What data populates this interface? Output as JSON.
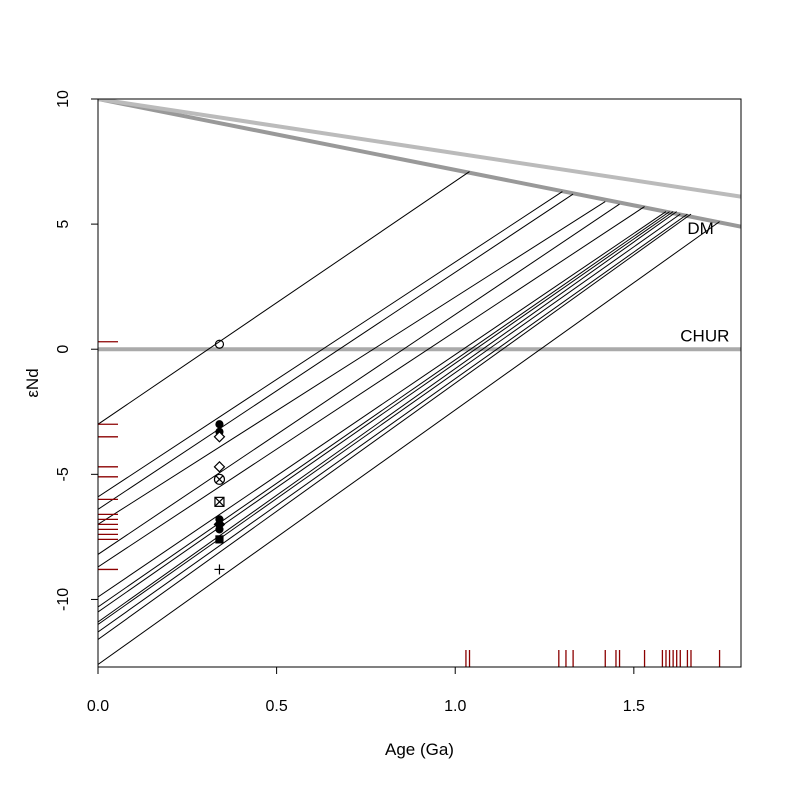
{
  "chart_data": {
    "type": "line",
    "xlabel": "Age (Ga)",
    "ylabel": "εNd",
    "xlim": [
      0,
      1.8
    ],
    "ylim": [
      -12.7,
      10
    ],
    "x_ticks": [
      "0.0",
      "0.5",
      "1.0",
      "1.5"
    ],
    "y_ticks": [
      "-10",
      "-5",
      "0",
      "5",
      "10"
    ],
    "reference_lines": [
      {
        "name": "DM",
        "x": [
          0,
          1.8
        ],
        "y": [
          10,
          4.9
        ],
        "color": "#999999"
      },
      {
        "name": "DM",
        "x": [
          0,
          1.8
        ],
        "y": [
          10,
          6.1
        ],
        "color": "#bbbbbb"
      },
      {
        "name": "CHUR",
        "x": [
          0,
          1.8
        ],
        "y": [
          0,
          0
        ],
        "color": "#aaaaaa"
      }
    ],
    "evolution_lines": [
      {
        "y_at_zero": -3.0,
        "x_end": 1.04,
        "y_end": 7.1
      },
      {
        "y_at_zero": -5.9,
        "x_end": 1.3,
        "y_end": 6.3
      },
      {
        "y_at_zero": -6.4,
        "x_end": 1.33,
        "y_end": 6.2
      },
      {
        "y_at_zero": -7.0,
        "x_end": 1.42,
        "y_end": 5.9
      },
      {
        "y_at_zero": -8.2,
        "x_end": 1.46,
        "y_end": 5.8
      },
      {
        "y_at_zero": -8.7,
        "x_end": 1.53,
        "y_end": 5.7
      },
      {
        "y_at_zero": -9.9,
        "x_end": 1.59,
        "y_end": 5.5
      },
      {
        "y_at_zero": -10.3,
        "x_end": 1.6,
        "y_end": 5.5
      },
      {
        "y_at_zero": -10.5,
        "x_end": 1.61,
        "y_end": 5.5
      },
      {
        "y_at_zero": -10.9,
        "x_end": 1.62,
        "y_end": 5.5
      },
      {
        "y_at_zero": -11.0,
        "x_end": 1.63,
        "y_end": 5.4
      },
      {
        "y_at_zero": -11.3,
        "x_end": 1.65,
        "y_end": 5.4
      },
      {
        "y_at_zero": -11.6,
        "x_end": 1.66,
        "y_end": 5.4
      },
      {
        "y_at_zero": -12.6,
        "x_end": 1.74,
        "y_end": 5.1
      }
    ],
    "samples": [
      {
        "x": 0.34,
        "y": 0.2,
        "marker": "circle"
      },
      {
        "x": 0.34,
        "y": -3.0,
        "marker": "filled-circle"
      },
      {
        "x": 0.34,
        "y": -3.3,
        "marker": "filled-circle"
      },
      {
        "x": 0.34,
        "y": -3.5,
        "marker": "diamond"
      },
      {
        "x": 0.34,
        "y": -4.7,
        "marker": "diamond"
      },
      {
        "x": 0.34,
        "y": -5.2,
        "marker": "circle-cross"
      },
      {
        "x": 0.34,
        "y": -6.1,
        "marker": "square-cross"
      },
      {
        "x": 0.34,
        "y": -6.8,
        "marker": "filled-circle"
      },
      {
        "x": 0.34,
        "y": -7.0,
        "marker": "filled-diamond"
      },
      {
        "x": 0.34,
        "y": -7.2,
        "marker": "filled-circle"
      },
      {
        "x": 0.34,
        "y": -7.6,
        "marker": "filled-square"
      },
      {
        "x": 0.34,
        "y": -8.8,
        "marker": "plus"
      }
    ],
    "rug_y": [
      0.3,
      -3.0,
      -3.5,
      -4.7,
      -5.1,
      -6.0,
      -6.6,
      -6.8,
      -7.0,
      -7.2,
      -7.4,
      -7.6,
      -8.8
    ],
    "rug_x": [
      1.03,
      1.04,
      1.29,
      1.31,
      1.33,
      1.42,
      1.45,
      1.46,
      1.53,
      1.58,
      1.59,
      1.6,
      1.61,
      1.62,
      1.63,
      1.65,
      1.66,
      1.74
    ],
    "rug_color": "#8b0000",
    "grid": false,
    "legend": "none"
  },
  "labels": {
    "dm": "DM",
    "chur": "CHUR"
  }
}
